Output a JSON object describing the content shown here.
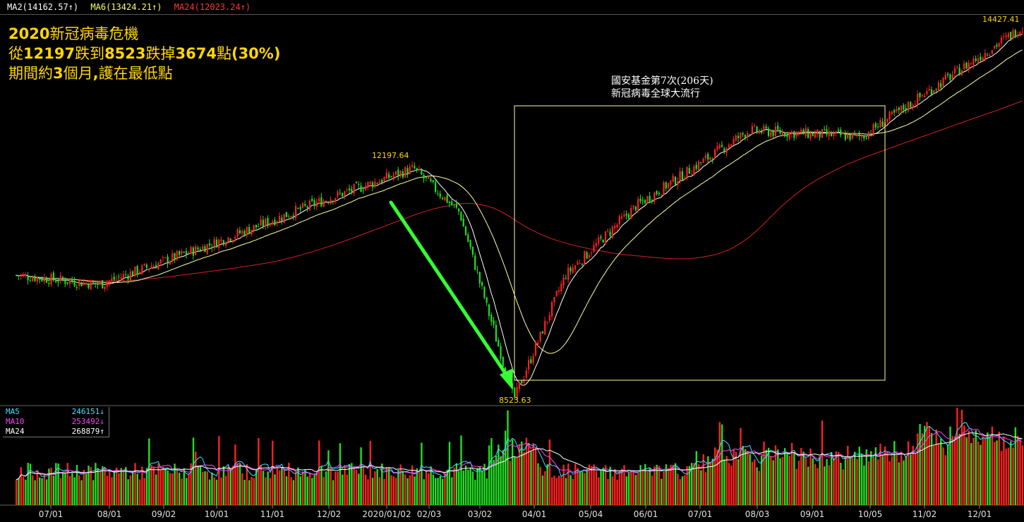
{
  "legend_top": [
    {
      "label": "MA2(14162.57↑)",
      "color": "#ffffff"
    },
    {
      "label": "MA6(13424.21↑)",
      "color": "#ffff66"
    },
    {
      "label": "MA24(12023.24↑)",
      "color": "#ff3333"
    }
  ],
  "annotation": {
    "line1_a": "2020",
    "line1_b": "新冠病毒危機",
    "line2_a": "從",
    "line2_b": "12197",
    "line2_c": "跌到",
    "line2_d": "8523",
    "line2_e": "跌掉",
    "line2_f": "3674",
    "line2_g": "點",
    "line2_h": "(30%)",
    "line3_a": "期間約",
    "line3_b": "3",
    "line3_c": "個月",
    "line3_d": ",",
    "line3_e": "護在最低點"
  },
  "box_label": {
    "line1": "國安基金第7次(206天)",
    "line2": "新冠病毒全球大流行"
  },
  "price_labels": {
    "peak": "12197.64",
    "low": "8523.63",
    "high": "14427.41"
  },
  "volume_legend": [
    {
      "name": "MA5",
      "value": "246151↓",
      "color": "#40e0ff"
    },
    {
      "name": "MA10",
      "value": "253492↓",
      "color": "#ff40ff"
    },
    {
      "name": "MA24",
      "value": "268879↑",
      "color": "#ffffff"
    }
  ],
  "colors": {
    "up": "#ff2020",
    "down": "#20e020",
    "ma_white": "#ffffff",
    "ma_yellow": "#ffff99",
    "ma_red": "#d42020",
    "arrow": "#33ff33",
    "box": "#ffff99"
  },
  "chart_data": {
    "type": "candlestick",
    "x_ticks": [
      "07/01",
      "08/01",
      "09/02",
      "10/01",
      "11/01",
      "12/02",
      "2020/01/02",
      "02/03",
      "03/02",
      "04/01",
      "05/04",
      "06/01",
      "07/01",
      "08/03",
      "09/01",
      "10/05",
      "11/02",
      "12/01"
    ],
    "price_anchors": [
      {
        "date": "2019/06",
        "close": 10500
      },
      {
        "date": "2019/08",
        "close": 10350
      },
      {
        "date": "2019/10",
        "close": 11000
      },
      {
        "date": "2019/12",
        "close": 11700
      },
      {
        "date": "2020/01",
        "close": 12197.64
      },
      {
        "date": "2020/02",
        "close": 11500
      },
      {
        "date": "2020/03",
        "close": 8523.63
      },
      {
        "date": "2020/04",
        "close": 10500
      },
      {
        "date": "2020/06",
        "close": 11600
      },
      {
        "date": "2020/08",
        "close": 12800
      },
      {
        "date": "2020/10",
        "close": 12700
      },
      {
        "date": "2020/12",
        "close": 14427.41
      }
    ],
    "peak": 12197.64,
    "low": 8523.63,
    "high": 14427.41
  }
}
